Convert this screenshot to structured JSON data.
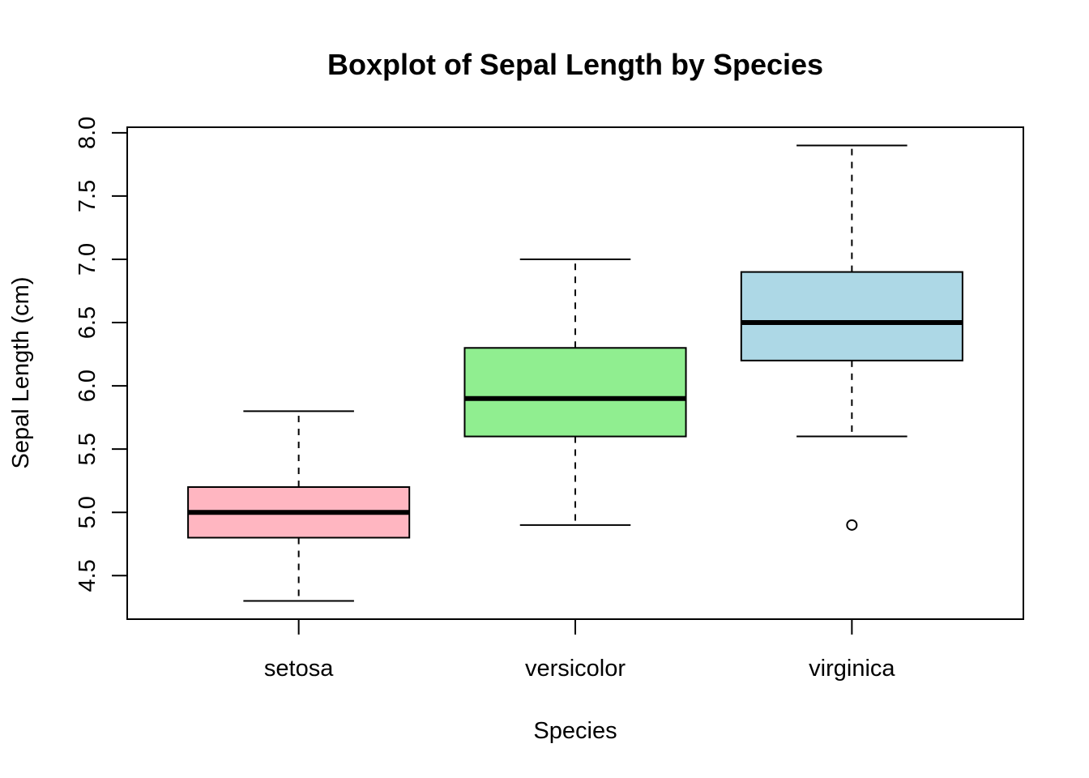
{
  "chart_data": {
    "type": "boxplot",
    "title": "Boxplot of Sepal Length by Species",
    "xlabel": "Species",
    "ylabel": "Sepal Length (cm)",
    "ylim": [
      4.156,
      8.044
    ],
    "yticks": [
      4.5,
      5.0,
      5.5,
      6.0,
      6.5,
      7.0,
      7.5,
      8.0
    ],
    "ytick_labels": [
      "4.5",
      "5.0",
      "5.5",
      "6.0",
      "6.5",
      "7.0",
      "7.5",
      "8.0"
    ],
    "grid": false,
    "categories": [
      "setosa",
      "versicolor",
      "virginica"
    ],
    "boxes": [
      {
        "category": "setosa",
        "whisker_low": 4.3,
        "q1": 4.8,
        "median": 5.0,
        "q3": 5.2,
        "whisker_high": 5.8,
        "outliers": [],
        "color": "#FFB6C1"
      },
      {
        "category": "versicolor",
        "whisker_low": 4.9,
        "q1": 5.6,
        "median": 5.9,
        "q3": 6.3,
        "whisker_high": 7.0,
        "outliers": [],
        "color": "#90EE90"
      },
      {
        "category": "virginica",
        "whisker_low": 5.6,
        "q1": 6.2,
        "median": 6.5,
        "q3": 6.9,
        "whisker_high": 7.9,
        "outliers": [
          4.9
        ],
        "color": "#ADD8E6"
      }
    ]
  }
}
